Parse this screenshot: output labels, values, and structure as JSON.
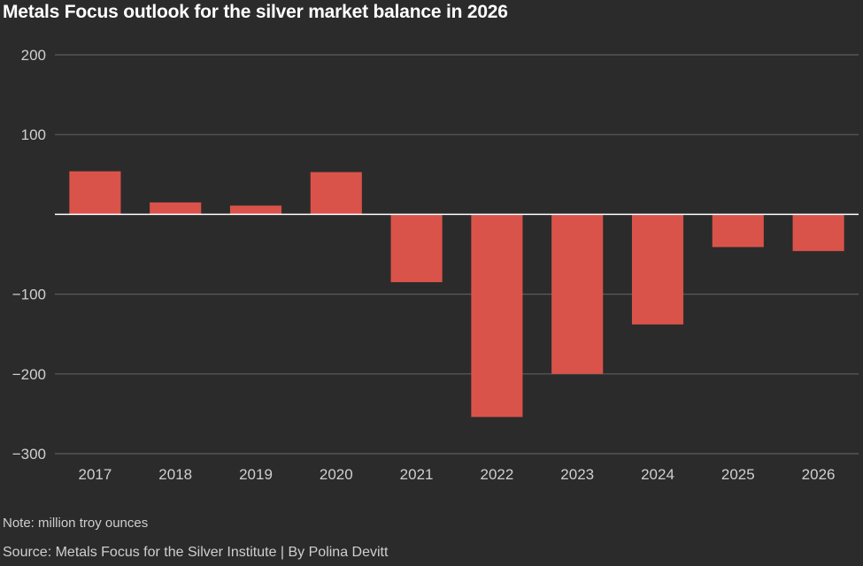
{
  "chart_data": {
    "type": "bar",
    "title": "Metals Focus outlook for the silver market balance in 2026",
    "note": "Note: million troy ounces",
    "source": "Source: Metals Focus for the Silver Institute | By Polina Devitt",
    "categories": [
      "2017",
      "2018",
      "2019",
      "2020",
      "2021",
      "2022",
      "2023",
      "2024",
      "2025",
      "2026"
    ],
    "values": [
      54,
      15,
      11,
      53,
      -85,
      -254,
      -200,
      -138,
      -41,
      -46
    ],
    "ylim": [
      -300,
      200
    ],
    "yticks": [
      200,
      100,
      -100,
      -200,
      -300
    ],
    "ytick_labels": [
      "200",
      "100",
      "−100",
      "−200",
      "−300"
    ],
    "grid": true,
    "colors": {
      "bar": "#d9534a",
      "grid": "#5c5c5c",
      "zero_line": "#ffffff",
      "background": "#2b2b2b"
    }
  }
}
